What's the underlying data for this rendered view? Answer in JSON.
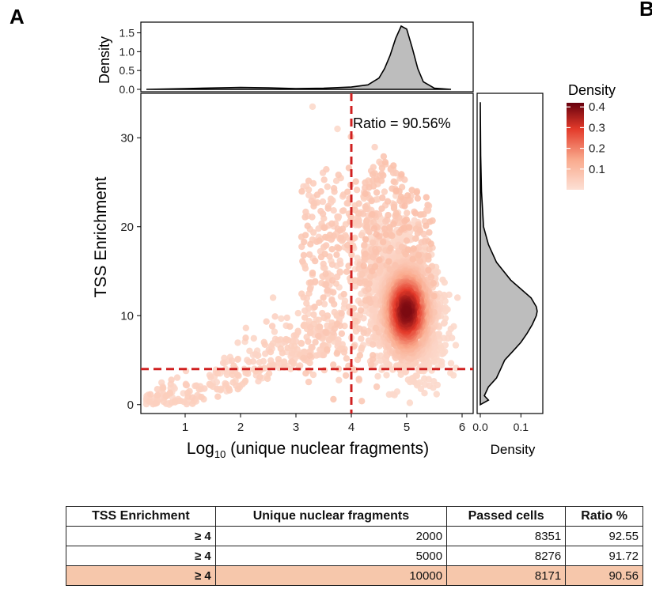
{
  "panel_labels": [
    "A",
    "B"
  ],
  "chart_data": [
    {
      "type": "scatter",
      "name": "main",
      "xlabel": "Log10 (unique nuclear fragments)",
      "ylabel": "TSS Enrichment",
      "xlim": [
        0.2,
        6.2
      ],
      "ylim": [
        -1,
        35
      ],
      "xticks": [
        1,
        2,
        3,
        4,
        5,
        6
      ],
      "yticks": [
        0,
        10,
        20,
        30
      ],
      "grid": false,
      "color_scale": {
        "title": "Density",
        "ticks": [
          0.1,
          0.2,
          0.3,
          0.4
        ],
        "range": [
          0,
          0.42
        ],
        "low": "#fde0d5",
        "high": "#67000d"
      },
      "thresholds": {
        "x": 4,
        "y": 4,
        "color": "#d02020"
      },
      "annotation": "Ratio = 90.56%",
      "points_description": "density-colored scatter; dense core near x=5.0, y=10.5",
      "clusters": [
        {
          "x": 5.0,
          "y": 10.5,
          "density": 0.4
        },
        {
          "x": 4.7,
          "y": 14,
          "density": 0.2
        },
        {
          "x": 4.4,
          "y": 20,
          "density": 0.05
        },
        {
          "x": 3,
          "y": 3,
          "density": 0.03
        },
        {
          "x": 1.5,
          "y": 0.5,
          "density": 0.02
        }
      ]
    },
    {
      "type": "area",
      "name": "top-marginal",
      "ylabel": "Density",
      "yticks": [
        0.0,
        0.5,
        1.0,
        1.5
      ],
      "ylim": [
        0,
        1.7
      ],
      "x": [
        0.3,
        1.0,
        2.0,
        2.5,
        3.0,
        3.5,
        4.0,
        4.3,
        4.5,
        4.6,
        4.7,
        4.8,
        4.9,
        5.0,
        5.1,
        5.2,
        5.3,
        5.5,
        5.8
      ],
      "values": [
        0.0,
        0.02,
        0.05,
        0.04,
        0.02,
        0.03,
        0.06,
        0.12,
        0.3,
        0.55,
        0.9,
        1.35,
        1.68,
        1.6,
        1.1,
        0.55,
        0.2,
        0.03,
        0.0
      ]
    },
    {
      "type": "area",
      "name": "right-marginal",
      "xlabel": "Density",
      "xticks": [
        0.0,
        0.1
      ],
      "xlim": [
        0,
        0.15
      ],
      "y": [
        0,
        0.5,
        1,
        2,
        3,
        4,
        5,
        6,
        7,
        8,
        9,
        10,
        10.5,
        11,
        12,
        13,
        14,
        16,
        18,
        20,
        24,
        28,
        34
      ],
      "values": [
        0.0,
        0.02,
        0.01,
        0.02,
        0.04,
        0.05,
        0.06,
        0.08,
        0.1,
        0.115,
        0.128,
        0.138,
        0.14,
        0.138,
        0.125,
        0.1,
        0.075,
        0.04,
        0.02,
        0.008,
        0.003,
        0.001,
        0.0
      ]
    }
  ],
  "table": {
    "headers": [
      "TSS Enrichment",
      "Unique nuclear fragments",
      "Passed cells",
      "Ratio %"
    ],
    "rows": [
      [
        "≥ 4",
        "2000",
        "8351",
        "92.55"
      ],
      [
        "≥ 4",
        "5000",
        "8276",
        "91.72"
      ],
      [
        "≥ 4",
        "10000",
        "8171",
        "90.56"
      ]
    ],
    "highlight_row": 2,
    "highlight_color": "#f6c7ab"
  }
}
